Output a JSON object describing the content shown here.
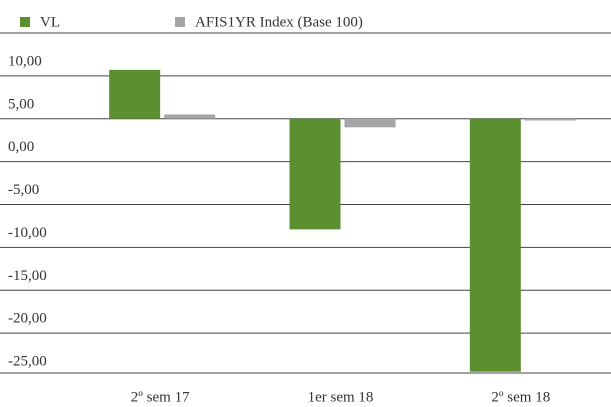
{
  "chart_data": {
    "type": "bar",
    "categories": [
      "2º sem 17",
      "1er sem 18",
      "2º sem 18"
    ],
    "series": [
      {
        "name": "VL",
        "color": "#5b8f2f",
        "values": [
          5.7,
          -12.9,
          -29.5
        ]
      },
      {
        "name": "AFIS1YR Index (Base 100)",
        "color": "#a5a5a5",
        "values": [
          0.5,
          -1.0,
          -0.2
        ]
      }
    ],
    "ylim": [
      -30,
      10
    ],
    "yticks": [
      {
        "value": 10,
        "label": "10,00"
      },
      {
        "value": 5,
        "label": "5,00"
      },
      {
        "value": 0,
        "label": "0,00"
      },
      {
        "value": -5,
        "label": "-5,00"
      },
      {
        "value": -10,
        "label": "-10,00"
      },
      {
        "value": -15,
        "label": "-15,00"
      },
      {
        "value": -20,
        "label": "-20,00"
      },
      {
        "value": -25,
        "label": "-25,00"
      }
    ],
    "grid": true
  }
}
